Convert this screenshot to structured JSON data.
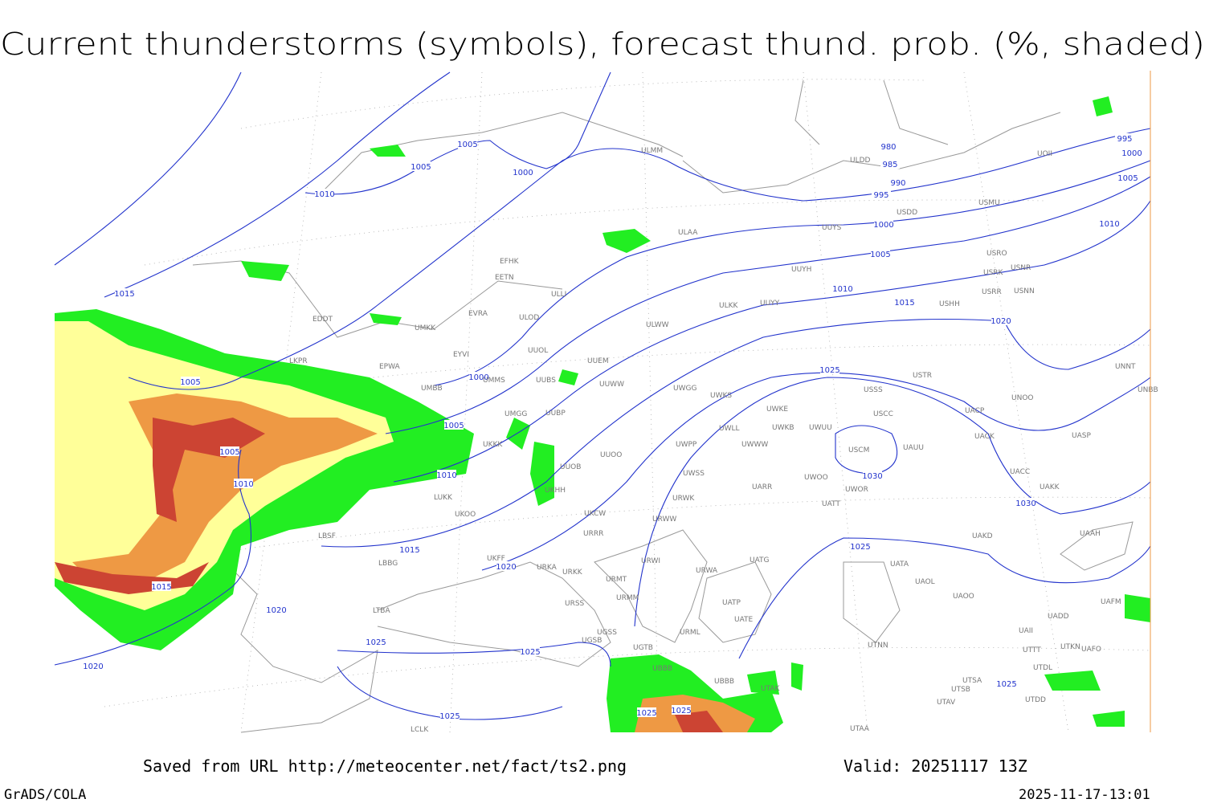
{
  "title": "Current thunderstorms (symbols), forecast thund. prob. (%, shaded)",
  "footer": {
    "source": "Saved from URL http://meteocenter.net/fact/ts2.png",
    "valid": "Valid: 20251117 13Z",
    "software": "GrADS/COLA",
    "timestamp": "2025-11-17-13:01"
  },
  "isobar_labels": [
    "1005",
    "1005",
    "1000",
    "1010",
    "980",
    "985",
    "990",
    "995",
    "995",
    "1000",
    "1005",
    "1010",
    "1000",
    "1005",
    "1010",
    "1015",
    "1020",
    "1015",
    "1005",
    "1000",
    "1005",
    "1005",
    "1010",
    "1010",
    "1015",
    "1020",
    "1015",
    "1020",
    "1025",
    "1030",
    "1030",
    "1025",
    "1025",
    "1025",
    "1020",
    "1025",
    "1025",
    "1025",
    "1025"
  ],
  "stations": [
    "ULMM",
    "ULDD",
    "UOII",
    "USDD",
    "USMU",
    "ULAA",
    "UUYS",
    "USRO",
    "UUYH",
    "USRK",
    "USNR",
    "USRR",
    "USNN",
    "EFHK",
    "EETN",
    "ULLI",
    "EVRA",
    "ULOD",
    "ULKK",
    "UUYY",
    "USHH",
    "EDDT",
    "UMKK",
    "ULWW",
    "EYVI",
    "UUOL",
    "UUEM",
    "EPWA",
    "UMMS",
    "LKPR",
    "USTR",
    "UNNT",
    "UMBB",
    "UUBS",
    "UUWW",
    "UWGG",
    "UWKS",
    "USSS",
    "UNOO",
    "UNBB",
    "UWKE",
    "USCC",
    "UACP",
    "UMGG",
    "UUBP",
    "UWLL",
    "UWKB",
    "UWUU",
    "UACK",
    "UASP",
    "UKKK",
    "UWPP",
    "UWWW",
    "USCM",
    "UAUU",
    "UUOO",
    "UUOB",
    "UWSS",
    "UACC",
    "UKHH",
    "UARR",
    "UWOO",
    "UWOR",
    "UAKK",
    "LUKK",
    "URWK",
    "UATT",
    "UKOO",
    "UKCW",
    "URWW",
    "LBSF",
    "URRR",
    "UAKD",
    "UAAH",
    "UKFF",
    "LBBG",
    "URWI",
    "UATG",
    "UATA",
    "URKA",
    "URKK",
    "URMT",
    "URWA",
    "UAOL",
    "URMM",
    "UATP",
    "UAOO",
    "URSS",
    "UAFM",
    "LTBA",
    "UATE",
    "UADD",
    "UGSS",
    "URML",
    "UAII",
    "UGSB",
    "UGTB",
    "UTNN",
    "UTTT",
    "UTKN",
    "UAFO",
    "UBBB",
    "UTDL",
    "UBBB",
    "UTSA",
    "UTSB",
    "UTAK",
    "UTAV",
    "UTDD",
    "UTAA",
    "LCLK"
  ]
}
